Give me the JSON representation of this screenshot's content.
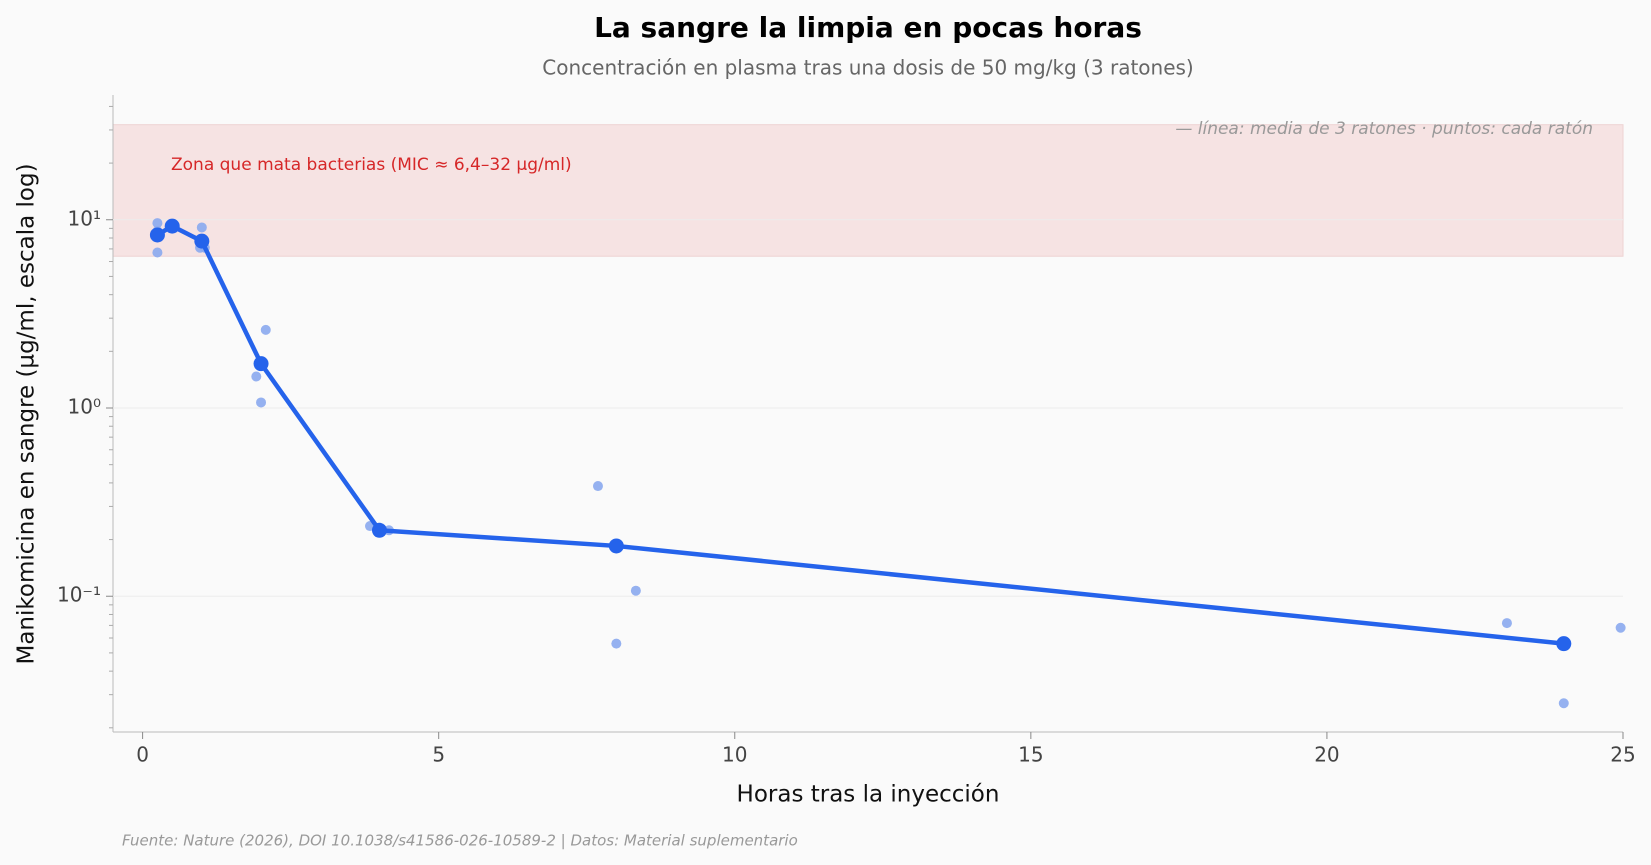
{
  "chart_data": {
    "type": "line",
    "title": "La sangre la limpia en pocas horas",
    "subtitle": "Concentración en plasma tras una dosis de 50 mg/kg (3 ratones)",
    "x_label": "Horas tras la inyección",
    "y_label": "Manikomicina en sangre (µg/ml, escala log)",
    "note": "— línea: media de 3 ratones · puntos: cada ratón",
    "source": "Fuente: Nature (2026), DOI 10.1038/s41586-026-10589-2 | Datos: Material suplementario",
    "band": {
      "label": "Zona que mata bacterias (MIC ≈ 6,4–32 µg/ml)",
      "range": [
        6.4,
        32
      ],
      "color": "#f6e3e3"
    },
    "y_scale": "log",
    "grid": true,
    "xlim": [
      -0.5,
      25
    ],
    "xticks": [
      0,
      5,
      10,
      15,
      20,
      25
    ],
    "ylim": [
      0.019,
      46
    ],
    "yticks": [
      {
        "value": 0.1,
        "label": "10⁻¹"
      },
      {
        "value": 1,
        "label": "10⁰"
      },
      {
        "value": 10,
        "label": "10¹"
      }
    ],
    "mean": {
      "color": "#2563eb",
      "x": [
        0.25,
        0.5,
        1,
        2,
        4,
        8,
        24
      ],
      "values": [
        8.3,
        9.25,
        7.7,
        1.72,
        0.224,
        0.185,
        0.056
      ]
    },
    "mice": {
      "color": "#8aa8ee",
      "x": [
        0.25,
        0.25,
        0.25,
        1,
        0.97,
        1.05,
        2.08,
        1.92,
        2,
        3.84,
        4.16,
        4,
        7.69,
        8.33,
        8,
        23.04,
        24,
        24.96
      ],
      "values": [
        9.6,
        6.7,
        8.7,
        9.1,
        7.1,
        7.1,
        2.6,
        1.47,
        1.07,
        0.236,
        0.224,
        0.22,
        0.385,
        0.107,
        0.056,
        0.072,
        0.027,
        0.068
      ]
    }
  }
}
